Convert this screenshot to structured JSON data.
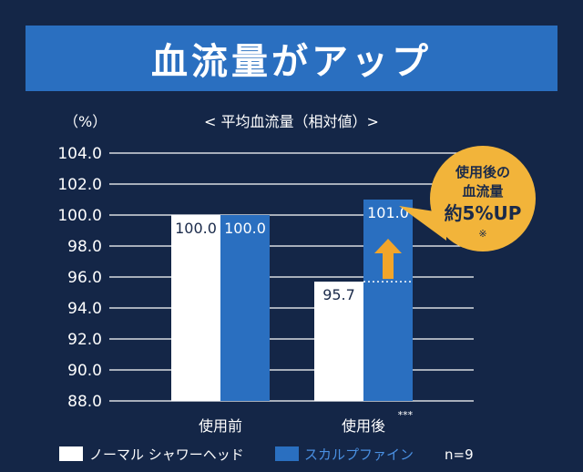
{
  "banner": {
    "title": "血流量がアップ"
  },
  "chart_data": {
    "type": "bar",
    "title": "< 平均血流量（相対値）>",
    "ylabel": "（%）",
    "ylim": [
      88.0,
      104.0
    ],
    "yticks": [
      "88.0",
      "90.0",
      "92.0",
      "94.0",
      "96.0",
      "98.0",
      "100.0",
      "102.0",
      "104.0"
    ],
    "grid": true,
    "categories": [
      "使用前",
      "使用後"
    ],
    "significance_mark": "***",
    "series": [
      {
        "name": "ノーマル シャワーヘッド",
        "values": [
          100.0,
          95.7
        ],
        "labels": [
          "100.0",
          "95.7"
        ],
        "color": "#ffffff",
        "label_color": "#1a2a4a"
      },
      {
        "name": "スカルプファイン",
        "values": [
          100.0,
          101.0
        ],
        "labels": [
          "100.0",
          "101.0"
        ],
        "color": "#2a6fc0",
        "label_color": "#ffffff"
      }
    ],
    "annotation": {
      "lines": [
        "使用後の",
        "血流量",
        "約5%UP",
        "※"
      ],
      "bubble_color": "#f2b43a",
      "arrow_color": "#f2a52a",
      "arrow_from": 95.7,
      "arrow_to": 100.0
    },
    "legend": {
      "position": "bottom-left"
    },
    "sample_size": "n=9"
  }
}
